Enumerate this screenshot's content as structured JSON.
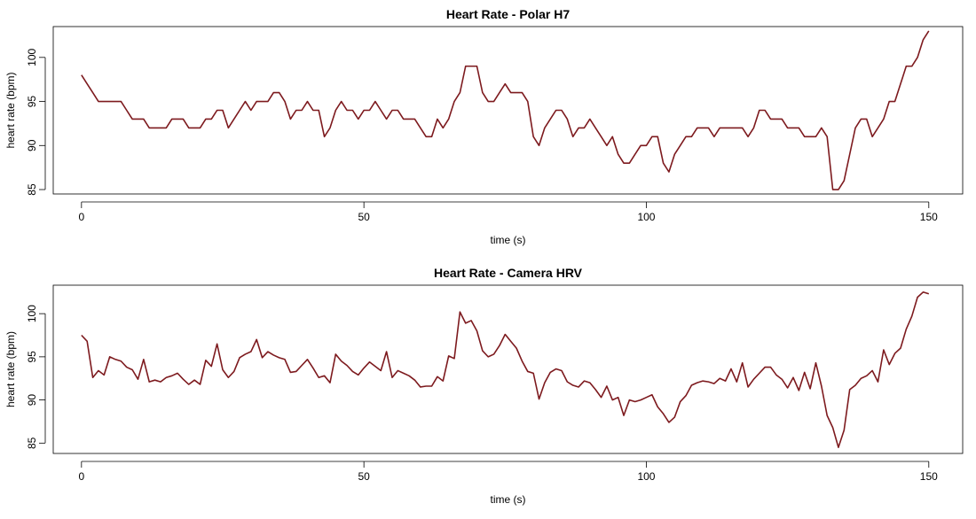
{
  "line_color": "#7d1a1e",
  "chart_data": [
    {
      "type": "line",
      "title": "Heart Rate - Polar H7",
      "xlabel": "time (s)",
      "ylabel": "heart rate (bpm)",
      "xlim": [
        -5,
        156
      ],
      "ylim": [
        84.5,
        103.5
      ],
      "xticks": [
        0,
        50,
        100,
        150
      ],
      "xtick_labels": [
        "0",
        "50",
        "100",
        "150"
      ],
      "yticks": [
        85,
        90,
        95,
        100
      ],
      "ytick_labels": [
        "85",
        "90",
        "95",
        "100"
      ],
      "series": [
        {
          "x": [
            0,
            1,
            2,
            3,
            4,
            5,
            6,
            7,
            8,
            9,
            10,
            11,
            12,
            13,
            14,
            15,
            16,
            17,
            18,
            19,
            20,
            21,
            22,
            23,
            24,
            25,
            26,
            27,
            28,
            29,
            30,
            31,
            32,
            33,
            34,
            35,
            36,
            37,
            38,
            39,
            40,
            41,
            42,
            43,
            44,
            45,
            46,
            47,
            48,
            49,
            50,
            51,
            52,
            53,
            54,
            55,
            56,
            57,
            58,
            59,
            60,
            61,
            62,
            63,
            64,
            65,
            66,
            67,
            68,
            69,
            70,
            71,
            72,
            73,
            74,
            75,
            76,
            77,
            78,
            79,
            80,
            81,
            82,
            83,
            84,
            85,
            86,
            87,
            88,
            89,
            90,
            91,
            92,
            93,
            94,
            95,
            96,
            97,
            98,
            99,
            100,
            101,
            102,
            103,
            104,
            105,
            106,
            107,
            108,
            109,
            110,
            111,
            112,
            113,
            114,
            115,
            116,
            117,
            118,
            119,
            120,
            121,
            122,
            123,
            124,
            125,
            126,
            127,
            128,
            129,
            130,
            131,
            132,
            133,
            134,
            135,
            136,
            137,
            138,
            139,
            140,
            141,
            142,
            143,
            144,
            145,
            146,
            147,
            148,
            149,
            150
          ],
          "y": [
            98,
            97,
            96,
            95,
            95,
            95,
            95,
            95,
            94,
            93,
            93,
            93,
            92,
            92,
            92,
            92,
            93,
            93,
            93,
            92,
            92,
            92,
            93,
            93,
            94,
            94,
            92,
            93,
            94,
            95,
            94,
            95,
            95,
            95,
            96,
            96,
            95,
            93,
            94,
            94,
            95,
            94,
            94,
            91,
            92,
            94,
            95,
            94,
            94,
            93,
            94,
            94,
            95,
            94,
            93,
            94,
            94,
            93,
            93,
            93,
            92,
            91,
            91,
            93,
            92,
            93,
            95,
            96,
            99,
            99,
            99,
            96,
            95,
            95,
            96,
            97,
            96,
            96,
            96,
            95,
            91,
            90,
            92,
            93,
            94,
            94,
            93,
            91,
            92,
            92,
            93,
            92,
            91,
            90,
            91,
            89,
            88,
            88,
            89,
            90,
            90,
            91,
            91,
            88,
            87,
            89,
            90,
            91,
            91,
            92,
            92,
            92,
            91,
            92,
            92,
            92,
            92,
            92,
            91,
            92,
            94,
            94,
            93,
            93,
            93,
            92,
            92,
            92,
            91,
            91,
            91,
            92,
            91,
            85,
            85,
            86,
            89,
            92,
            93,
            93,
            91,
            92,
            93,
            95,
            95,
            97,
            99,
            99,
            100,
            102,
            103
          ]
        }
      ]
    },
    {
      "type": "line",
      "title": "Heart Rate - Camera HRV",
      "xlabel": "time (s)",
      "ylabel": "heart rate (bpm)",
      "xlim": [
        -5,
        156
      ],
      "ylim": [
        83.8,
        103.3
      ],
      "xticks": [
        0,
        50,
        100,
        150
      ],
      "xtick_labels": [
        "0",
        "50",
        "100",
        "150"
      ],
      "yticks": [
        85,
        90,
        95,
        100
      ],
      "ytick_labels": [
        "85",
        "90",
        "95",
        "100"
      ],
      "series": [
        {
          "x": [
            0,
            1,
            2,
            3,
            4,
            5,
            6,
            7,
            8,
            9,
            10,
            11,
            12,
            13,
            14,
            15,
            16,
            17,
            18,
            19,
            20,
            21,
            22,
            23,
            24,
            25,
            26,
            27,
            28,
            29,
            30,
            31,
            32,
            33,
            34,
            35,
            36,
            37,
            38,
            39,
            40,
            41,
            42,
            43,
            44,
            45,
            46,
            47,
            48,
            49,
            50,
            51,
            52,
            53,
            54,
            55,
            56,
            57,
            58,
            59,
            60,
            61,
            62,
            63,
            64,
            65,
            66,
            67,
            68,
            69,
            70,
            71,
            72,
            73,
            74,
            75,
            76,
            77,
            78,
            79,
            80,
            81,
            82,
            83,
            84,
            85,
            86,
            87,
            88,
            89,
            90,
            91,
            92,
            93,
            94,
            95,
            96,
            97,
            98,
            99,
            100,
            101,
            102,
            103,
            104,
            105,
            106,
            107,
            108,
            109,
            110,
            111,
            112,
            113,
            114,
            115,
            116,
            117,
            118,
            119,
            120,
            121,
            122,
            123,
            124,
            125,
            126,
            127,
            128,
            129,
            130,
            131,
            132,
            133,
            134,
            135,
            136,
            137,
            138,
            139,
            140,
            141,
            142,
            143,
            144,
            145,
            146,
            147,
            148,
            149,
            150
          ],
          "y": [
            97.5,
            96.8,
            92.6,
            93.4,
            92.9,
            95.0,
            94.7,
            94.5,
            93.8,
            93.5,
            92.4,
            94.7,
            92.1,
            92.3,
            92.1,
            92.6,
            92.8,
            93.1,
            92.4,
            91.8,
            92.3,
            91.8,
            94.6,
            93.9,
            96.5,
            93.5,
            92.6,
            93.3,
            94.9,
            95.3,
            95.6,
            97.0,
            94.9,
            95.6,
            95.2,
            94.9,
            94.7,
            93.2,
            93.3,
            94.0,
            94.7,
            93.7,
            92.6,
            92.8,
            92.0,
            95.3,
            94.5,
            94.0,
            93.3,
            92.9,
            93.7,
            94.4,
            93.9,
            93.4,
            95.6,
            92.6,
            93.4,
            93.1,
            92.8,
            92.3,
            91.5,
            91.6,
            91.6,
            92.7,
            92.2,
            95.1,
            94.8,
            100.2,
            98.9,
            99.2,
            98.0,
            95.7,
            95.0,
            95.3,
            96.3,
            97.6,
            96.8,
            96.0,
            94.5,
            93.3,
            93.1,
            90.1,
            92.0,
            93.2,
            93.6,
            93.4,
            92.1,
            91.7,
            91.5,
            92.2,
            92.0,
            91.2,
            90.3,
            91.6,
            90.0,
            90.3,
            88.2,
            90.0,
            89.8,
            90.0,
            90.3,
            90.6,
            89.2,
            88.4,
            87.4,
            88.0,
            89.8,
            90.5,
            91.7,
            92.0,
            92.2,
            92.1,
            91.9,
            92.5,
            92.2,
            93.6,
            92.1,
            94.3,
            91.5,
            92.4,
            93.1,
            93.8,
            93.8,
            92.9,
            92.4,
            91.4,
            92.6,
            91.1,
            93.2,
            91.3,
            94.3,
            91.6,
            88.2,
            86.8,
            84.5,
            86.5,
            91.2,
            91.7,
            92.5,
            92.8,
            93.4,
            92.1,
            95.8,
            94.1,
            95.4,
            96.0,
            98.2,
            99.7,
            101.9,
            102.5,
            102.3
          ]
        }
      ]
    }
  ]
}
